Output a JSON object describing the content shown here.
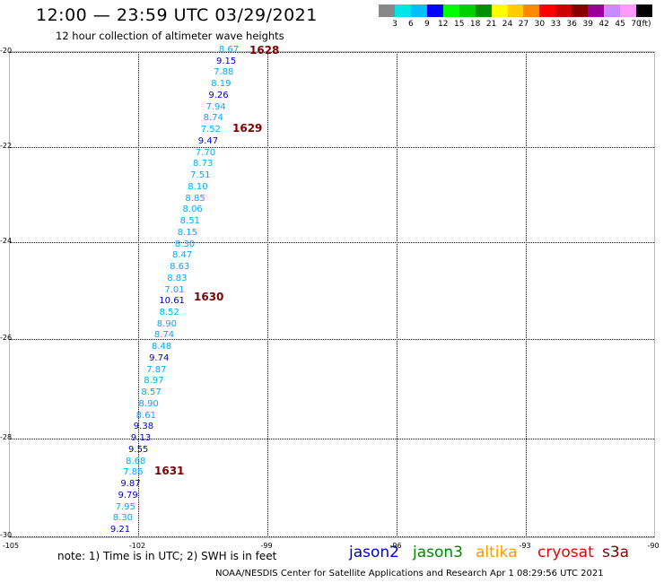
{
  "title": "12:00 — 23:59 UTC 03/29/2021",
  "subtitle": "12 hour collection of altimeter wave heights",
  "colorbar": {
    "colors": [
      "#888888",
      "#00e5e5",
      "#00bfff",
      "#0000ff",
      "#00ff00",
      "#00d000",
      "#009000",
      "#ffff00",
      "#ffcc00",
      "#ff8800",
      "#ff0000",
      "#cc0000",
      "#880000",
      "#990099",
      "#cc88ff",
      "#ff99ff",
      "#000000"
    ],
    "labels": [
      "3",
      "6",
      "9",
      "12",
      "15",
      "18",
      "21",
      "24",
      "27",
      "30",
      "33",
      "36",
      "39",
      "42",
      "45",
      "70"
    ],
    "unit": "(ft)"
  },
  "axes": {
    "x_labels": [
      "-105",
      "-102",
      "-99",
      "-96",
      "-93",
      "-90"
    ],
    "y_labels": [
      "-20",
      "-22",
      "-24",
      "-26",
      "-28",
      "-30"
    ]
  },
  "track": [
    {
      "v": "8.67",
      "c": "#00aaff"
    },
    {
      "v": "9.15",
      "c": "#0000cc"
    },
    {
      "v": "7.88",
      "c": "#00aaff"
    },
    {
      "v": "8.19",
      "c": "#00aaff"
    },
    {
      "v": "9.26",
      "c": "#0000cc"
    },
    {
      "v": "7.94",
      "c": "#00aaff"
    },
    {
      "v": "8.74",
      "c": "#00aaff"
    },
    {
      "v": "7.52",
      "c": "#00aaff"
    },
    {
      "v": "9.47",
      "c": "#0000cc"
    },
    {
      "v": "7.70",
      "c": "#00aaff"
    },
    {
      "v": "8.73",
      "c": "#00aaff"
    },
    {
      "v": "7.51",
      "c": "#00aaff"
    },
    {
      "v": "8.10",
      "c": "#00aaff"
    },
    {
      "v": "8.85",
      "c": "#00aaff"
    },
    {
      "v": "8.06",
      "c": "#00aaff"
    },
    {
      "v": "8.51",
      "c": "#00aaff"
    },
    {
      "v": "8.15",
      "c": "#00aaff"
    },
    {
      "v": "8.30",
      "c": "#00aaff"
    },
    {
      "v": "8.47",
      "c": "#00aaff"
    },
    {
      "v": "8.63",
      "c": "#00aaff"
    },
    {
      "v": "8.83",
      "c": "#00aaff"
    },
    {
      "v": "7.01",
      "c": "#00aaff"
    },
    {
      "v": "10.61",
      "c": "#0000cc"
    },
    {
      "v": "8.52",
      "c": "#00aaff"
    },
    {
      "v": "8.90",
      "c": "#00aaff"
    },
    {
      "v": "8.74",
      "c": "#00aaff"
    },
    {
      "v": "8.48",
      "c": "#00aaff"
    },
    {
      "v": "9.74",
      "c": "#0000cc"
    },
    {
      "v": "7.87",
      "c": "#00aaff"
    },
    {
      "v": "8.97",
      "c": "#00aaff"
    },
    {
      "v": "8.57",
      "c": "#00aaff"
    },
    {
      "v": "8.90",
      "c": "#00aaff"
    },
    {
      "v": "8.61",
      "c": "#00aaff"
    },
    {
      "v": "9.38",
      "c": "#0000cc"
    },
    {
      "v": "9.13",
      "c": "#0000cc"
    },
    {
      "v": "9.55",
      "c": "#0000cc"
    },
    {
      "v": "8.68",
      "c": "#00aaff"
    },
    {
      "v": "7.86",
      "c": "#00aaff"
    },
    {
      "v": "9.87",
      "c": "#0000cc"
    },
    {
      "v": "9.79",
      "c": "#0000cc"
    },
    {
      "v": "7.95",
      "c": "#00aaff"
    },
    {
      "v": "8.30",
      "c": "#00aaff"
    },
    {
      "v": "9.21",
      "c": "#0000cc"
    }
  ],
  "time_labels": [
    "1628",
    "1629",
    "1630",
    "1631"
  ],
  "note": "note: 1) Time is in UTC; 2) SWH is in feet",
  "legend": [
    {
      "label": "jason2",
      "color": "#0000cc"
    },
    {
      "label": "jason3",
      "color": "#008800"
    },
    {
      "label": "altika",
      "color": "#ff9900"
    },
    {
      "label": "cryosat",
      "color": "#ee0000"
    },
    {
      "label": "s3a",
      "color": "#800000"
    }
  ],
  "credit": "NOAA/NESDIS Center for Satellite Applications and Research    Apr  1 08:29:56 UTC 2021"
}
